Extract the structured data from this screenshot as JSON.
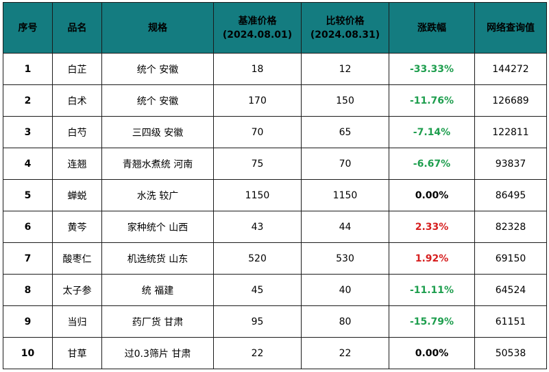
{
  "colors": {
    "header_bg": "#147c80",
    "down": "#1e9e4e",
    "up": "#d61f1f",
    "flat": "#000000"
  },
  "table": {
    "headers": {
      "index": "序号",
      "name": "品名",
      "spec": "规格",
      "base_price_title": "基准价格",
      "base_price_date": "(2024.08.01)",
      "compare_price_title": "比较价格",
      "compare_price_date": "(2024.08.31)",
      "change": "涨跌幅",
      "search_value": "网络查询值"
    },
    "rows": [
      {
        "index": "1",
        "name": "白芷",
        "spec": "统个 安徽",
        "base": "18",
        "compare": "12",
        "change": "-33.33%",
        "change_dir": "down",
        "search": "144272"
      },
      {
        "index": "2",
        "name": "白术",
        "spec": "统个 安徽",
        "base": "170",
        "compare": "150",
        "change": "-11.76%",
        "change_dir": "down",
        "search": "126689"
      },
      {
        "index": "3",
        "name": "白芍",
        "spec": "三四级 安徽",
        "base": "70",
        "compare": "65",
        "change": "-7.14%",
        "change_dir": "down",
        "search": "122811"
      },
      {
        "index": "4",
        "name": "连翘",
        "spec": "青翘水煮统 河南",
        "base": "75",
        "compare": "70",
        "change": "-6.67%",
        "change_dir": "down",
        "search": "93837"
      },
      {
        "index": "5",
        "name": "蝉蜕",
        "spec": "水洗 较广",
        "base": "1150",
        "compare": "1150",
        "change": "0.00%",
        "change_dir": "flat",
        "search": "86495"
      },
      {
        "index": "6",
        "name": "黄芩",
        "spec": "家种统个 山西",
        "base": "43",
        "compare": "44",
        "change": "2.33%",
        "change_dir": "up",
        "search": "82328"
      },
      {
        "index": "7",
        "name": "酸枣仁",
        "spec": "机选统货 山东",
        "base": "520",
        "compare": "530",
        "change": "1.92%",
        "change_dir": "up",
        "search": "69150"
      },
      {
        "index": "8",
        "name": "太子参",
        "spec": "统 福建",
        "base": "45",
        "compare": "40",
        "change": "-11.11%",
        "change_dir": "down",
        "search": "64524"
      },
      {
        "index": "9",
        "name": "当归",
        "spec": "药厂货 甘肃",
        "base": "95",
        "compare": "80",
        "change": "-15.79%",
        "change_dir": "down",
        "search": "61151"
      },
      {
        "index": "10",
        "name": "甘草",
        "spec": "过0.3筛片 甘肃",
        "base": "22",
        "compare": "22",
        "change": "0.00%",
        "change_dir": "flat",
        "search": "50538"
      }
    ]
  }
}
